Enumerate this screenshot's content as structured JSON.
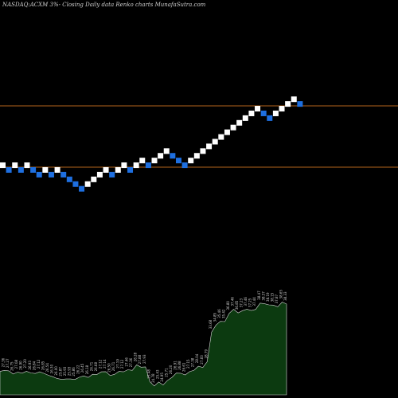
{
  "title": "NASDAQ:ACXM 3%-  Closing Daily data Renko  charts MunafaSutra.com",
  "colors": {
    "background": "#000000",
    "up_brick": "#ffffff",
    "down_brick": "#1e6fe0",
    "level_line": "#b5651d",
    "area_fill": "#0c3a10",
    "area_line": "#d8d8d8",
    "label_text": "#d0d0d0"
  },
  "chart_data": {
    "type": "renko",
    "brick_size_pct": 3,
    "levels": [
      36.9,
      26.5
    ],
    "bricks": [
      {
        "dir": "up",
        "high": 27.3
      },
      {
        "dir": "down",
        "high": 26.5
      },
      {
        "dir": "up",
        "high": 27.3
      },
      {
        "dir": "down",
        "high": 26.5
      },
      {
        "dir": "up",
        "high": 27.3
      },
      {
        "dir": "down",
        "high": 26.5
      },
      {
        "dir": "down",
        "high": 25.7
      },
      {
        "dir": "up",
        "high": 26.5
      },
      {
        "dir": "down",
        "high": 25.7
      },
      {
        "dir": "up",
        "high": 26.5
      },
      {
        "dir": "down",
        "high": 25.7
      },
      {
        "dir": "down",
        "high": 24.9
      },
      {
        "dir": "down",
        "high": 24.1
      },
      {
        "dir": "down",
        "high": 23.3
      },
      {
        "dir": "up",
        "high": 24.1
      },
      {
        "dir": "up",
        "high": 24.9
      },
      {
        "dir": "up",
        "high": 25.7
      },
      {
        "dir": "up",
        "high": 26.5
      },
      {
        "dir": "down",
        "high": 25.7
      },
      {
        "dir": "up",
        "high": 26.5
      },
      {
        "dir": "up",
        "high": 27.3
      },
      {
        "dir": "down",
        "high": 26.5
      },
      {
        "dir": "up",
        "high": 27.3
      },
      {
        "dir": "up",
        "high": 28.1
      },
      {
        "dir": "down",
        "high": 27.3
      },
      {
        "dir": "up",
        "high": 28.1
      },
      {
        "dir": "up",
        "high": 28.9
      },
      {
        "dir": "up",
        "high": 29.7
      },
      {
        "dir": "down",
        "high": 28.9
      },
      {
        "dir": "down",
        "high": 28.1
      },
      {
        "dir": "down",
        "high": 27.3
      },
      {
        "dir": "up",
        "high": 28.1
      },
      {
        "dir": "up",
        "high": 28.9
      },
      {
        "dir": "up",
        "high": 29.7
      },
      {
        "dir": "up",
        "high": 30.5
      },
      {
        "dir": "up",
        "high": 31.3
      },
      {
        "dir": "up",
        "high": 32.1
      },
      {
        "dir": "up",
        "high": 32.9
      },
      {
        "dir": "up",
        "high": 33.7
      },
      {
        "dir": "up",
        "high": 34.5
      },
      {
        "dir": "up",
        "high": 35.3
      },
      {
        "dir": "up",
        "high": 36.1
      },
      {
        "dir": "up",
        "high": 36.9
      },
      {
        "dir": "down",
        "high": 36.1
      },
      {
        "dir": "down",
        "high": 35.3
      },
      {
        "dir": "up",
        "high": 36.1
      },
      {
        "dir": "up",
        "high": 36.9
      },
      {
        "dir": "up",
        "high": 37.7
      },
      {
        "dir": "up",
        "high": 38.5
      },
      {
        "dir": "down",
        "high": 37.7
      }
    ],
    "close_labels": [
      "27.18",
      "27.36",
      "27.27",
      "26.75",
      "27.08",
      "26.90",
      "27.20",
      "26.93",
      "26.84",
      "27.12",
      "26.85",
      "26.54",
      "26.30",
      "26.00",
      "25.87",
      "25.93",
      "25.93",
      "25.86",
      "26.22",
      "26.45",
      "26.18",
      "26.71",
      "26.68",
      "27.12",
      "27.14",
      "26.50",
      "26.71",
      "27.19",
      "27.12",
      "27.46",
      "27.36",
      "28.28",
      "27.88",
      "27.93",
      "25.48",
      "24.78",
      "25.43",
      "24.95",
      "25.71",
      "26.20",
      "26.91",
      "26.88",
      "26.61",
      "27.15",
      "27.38",
      "28.04",
      "27.83",
      "28.79",
      "33.68",
      "34.85",
      "35.46",
      "35.42",
      "36.80",
      "37.46",
      "36.85",
      "37.23",
      "37.46",
      "37.25",
      "37.44",
      "38.47",
      "38.37",
      "38.19",
      "38.15",
      "37.87",
      "38.65",
      "38.33"
    ]
  }
}
